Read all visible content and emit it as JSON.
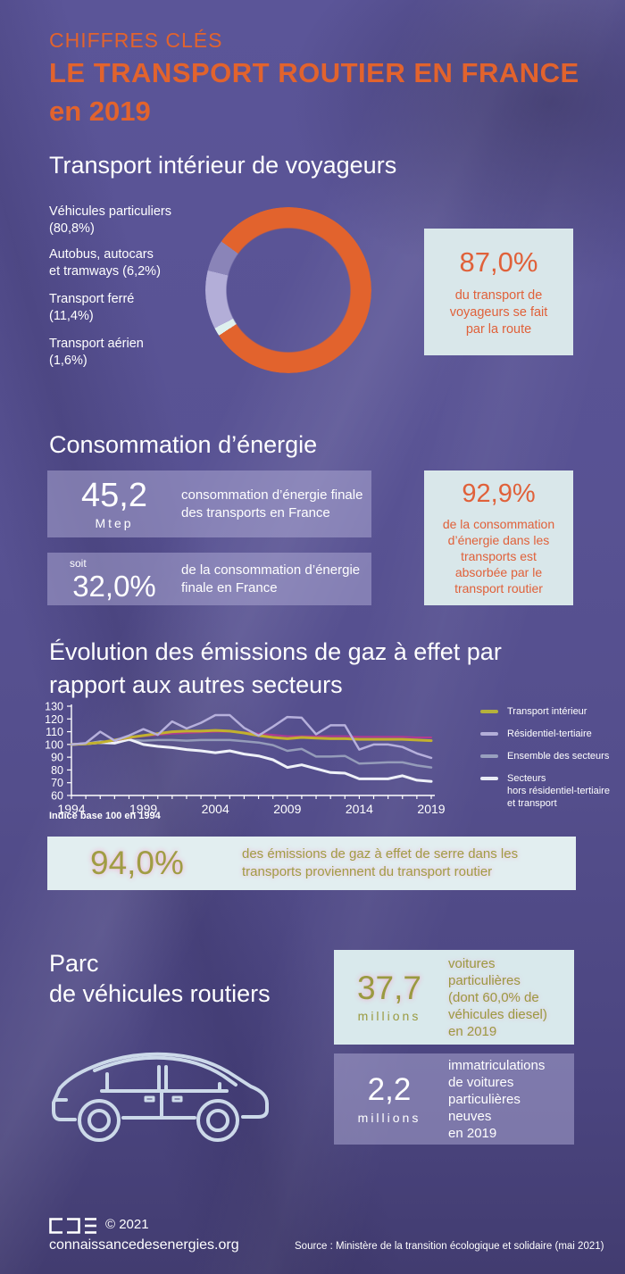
{
  "page": {
    "kicker": "CHIFFRES CLÉS",
    "title": "LE TRANSPORT ROUTIER EN FRANCE",
    "subtitle": "en 2019"
  },
  "colors": {
    "accent_orange": "#e2632d",
    "background_purple": "#565090",
    "lightbox_blue": "#d9e7ea",
    "lavender_box": "rgba(178,173,215,0.5)",
    "olive_text": "#9a9a40"
  },
  "sections": {
    "voyageurs": {
      "heading": "Transport intérieur de voyageurs",
      "highlight": {
        "value": "87,0%",
        "line1": "du transport de",
        "line2": "voyageurs se fait",
        "line3": "par la route"
      }
    },
    "energie": {
      "heading": "Consommation d’énergie",
      "stat1": {
        "value": "45,2",
        "unit": "Mtep",
        "line1": "consommation d’énergie finale",
        "line2": "des transports en France"
      },
      "stat2": {
        "prefix": "soit",
        "value": "32,0%",
        "line1": "de la consommation d’énergie",
        "line2": "finale en France"
      },
      "highlight": {
        "value": "92,9%",
        "line1": "de la consommation",
        "line2": "d’énergie dans les",
        "line3": "transports est",
        "line4": "absorbée par le",
        "line5": "transport routier"
      }
    },
    "emissions": {
      "heading_line1": "Évolution des émissions de gaz à effet par",
      "heading_line2": "rapport aux autres secteurs",
      "note": "Indice base 100 en 1994",
      "highlight": {
        "value": "94,0%",
        "line1": "des émissions de gaz à effet de serre dans les",
        "line2": "transports proviennent du transport routier"
      }
    },
    "parc": {
      "heading_line1": "Parc",
      "heading_line2": "de véhicules routiers",
      "stat1": {
        "value": "37,7",
        "unit": "millions",
        "lines": [
          "voitures",
          "particulières",
          "(dont 60,0% de",
          "véhicules diesel)",
          "en 2019"
        ]
      },
      "stat2": {
        "value": "2,2",
        "unit": "millions",
        "lines": [
          "immatriculations",
          "de voitures",
          "particulières",
          "neuves",
          "en 2019"
        ]
      }
    }
  },
  "footer": {
    "logo": "CDE",
    "copyright": "© 2021",
    "site": "connaissancedesenergies.org",
    "source": "Source : Ministère de la transition écologique et solidaire (mai 2021)"
  },
  "chart_data": [
    {
      "type": "pie",
      "subtype": "donut",
      "title": "Transport intérieur de voyageurs",
      "labels": [
        "Véhicules particuliers (80,8%)",
        "Autobus, autocars et tramways (6,2%)",
        "Transport ferré (11,4%)",
        "Transport aérien (1,6%)"
      ],
      "labels_lines": [
        [
          "Véhicules particuliers",
          "(80,8%)"
        ],
        [
          "Autobus, autocars",
          "et tramways (6,2%)"
        ],
        [
          "Transport ferré",
          "(11,4%)"
        ],
        [
          "Transport aérien",
          "(1,6%)"
        ]
      ],
      "values": [
        80.8,
        6.2,
        11.4,
        1.6
      ],
      "colors": [
        "#e2632d",
        "#8a84b8",
        "#b3aed8",
        "#def0ee"
      ]
    },
    {
      "type": "line",
      "title": "Évolution des émissions de gaz à effet par rapport aux autres secteurs",
      "note": "Indice base 100 en 1994",
      "ylim": [
        60,
        130
      ],
      "y_ticks": [
        60,
        70,
        80,
        90,
        100,
        110,
        120,
        130
      ],
      "x_ticks": [
        1994,
        1999,
        2004,
        2009,
        2014,
        2019
      ],
      "x": [
        1994,
        1995,
        1996,
        1997,
        1998,
        1999,
        2000,
        2001,
        2002,
        2003,
        2004,
        2005,
        2006,
        2007,
        2008,
        2009,
        2010,
        2011,
        2012,
        2013,
        2014,
        2015,
        2016,
        2017,
        2018,
        2019
      ],
      "legend_position": "right",
      "legend": [
        {
          "lines": [
            "Transport intérieur"
          ],
          "color": "#b5b23b"
        },
        {
          "lines": [
            "Résidentiel-tertiaire"
          ],
          "color": "#b3aed8"
        },
        {
          "lines": [
            "Ensemble des secteurs"
          ],
          "color": "#99a0bf"
        },
        {
          "lines": [
            "Secteurs",
            "hors résidentiel-tertiaire",
            "et transport"
          ],
          "color": "#e8ebf5"
        }
      ],
      "series": [
        {
          "name": "Ensemble des secteurs",
          "color": "#959cba",
          "width": 2.5,
          "values": [
            100,
            100.5,
            102.5,
            101.5,
            103.5,
            103,
            103.5,
            103.5,
            103,
            103.5,
            103.5,
            103.5,
            102.5,
            101.5,
            99.5,
            95,
            96.5,
            90.5,
            90.5,
            91,
            85,
            85.5,
            86,
            86,
            83.5,
            82
          ]
        },
        {
          "name": "Secteurs hors résidentiel-tertiaire et transport",
          "color": "#eef1f8",
          "width": 3,
          "values": [
            100,
            100.5,
            101.5,
            101,
            104,
            100,
            98.5,
            97.5,
            96,
            95,
            93.5,
            95,
            92.5,
            91,
            88,
            82,
            84,
            81,
            78,
            77.5,
            73,
            73,
            73,
            75.5,
            72,
            71
          ]
        },
        {
          "name": "",
          "color": "#b13a92",
          "width": 2,
          "values": [
            100,
            100.5,
            101.5,
            103,
            105,
            106.5,
            107.5,
            108.5,
            109,
            109.5,
            110,
            110,
            109.5,
            108.5,
            107.5,
            106.5,
            106.5,
            106.5,
            106.5,
            106.5,
            106,
            106,
            106,
            106,
            105.5,
            105.5
          ]
        },
        {
          "name": "Transport intérieur",
          "color": "#c2b12e",
          "width": 3,
          "values": [
            100,
            100.5,
            101.5,
            103.5,
            105.5,
            107,
            108.5,
            110,
            110.5,
            110.5,
            111,
            110.5,
            109,
            107,
            105.5,
            104.5,
            105.5,
            105,
            104.5,
            104.5,
            104,
            104,
            104,
            104,
            103.5,
            103
          ]
        },
        {
          "name": "Résidentiel-tertiaire",
          "color": "#b6b0dc",
          "width": 2.5,
          "values": [
            100,
            101,
            110,
            103,
            107,
            112,
            107.5,
            118,
            112.5,
            117,
            123,
            123,
            113,
            107,
            114,
            121.5,
            121,
            108,
            115,
            115,
            96,
            100,
            100,
            98,
            93,
            89.5
          ]
        }
      ]
    }
  ]
}
